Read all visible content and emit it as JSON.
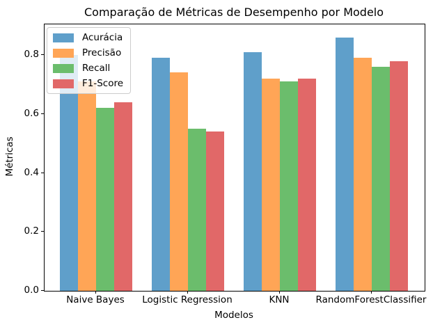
{
  "chart_data": {
    "type": "bar",
    "title": "Comparação de Métricas de Desempenho por Modelo",
    "xlabel": "Modelos",
    "ylabel": "Métricas",
    "categories": [
      "Naive Bayes",
      "Logistic Regression",
      "KNN",
      "RandomForestClassifier"
    ],
    "series": [
      {
        "name": "Acurácia",
        "color": "#5f9fca",
        "values": [
          0.8,
          0.79,
          0.81,
          0.86
        ]
      },
      {
        "name": "Precisão",
        "color": "#ffa556",
        "values": [
          0.71,
          0.74,
          0.72,
          0.79
        ]
      },
      {
        "name": "Recall",
        "color": "#6bbd6c",
        "values": [
          0.62,
          0.55,
          0.71,
          0.76
        ]
      },
      {
        "name": "F1-Score",
        "color": "#e16868",
        "values": [
          0.64,
          0.54,
          0.72,
          0.78
        ]
      }
    ],
    "yticks": [
      0.0,
      0.2,
      0.4,
      0.6,
      0.8
    ],
    "ylim": [
      0,
      0.904
    ],
    "grid": false,
    "legend_position": "upper left",
    "bar_alpha_note": "tab10 colors at ~0.7 alpha, pre-blended to hex above"
  }
}
